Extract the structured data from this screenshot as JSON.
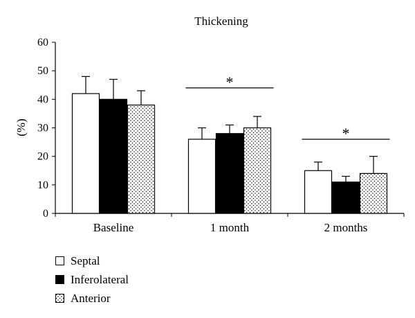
{
  "chart_data": {
    "type": "bar",
    "title": "Thickening",
    "ylabel": "(%)",
    "xlabel": "",
    "ylim": [
      0,
      60
    ],
    "yticks": [
      0,
      10,
      20,
      30,
      40,
      50,
      60
    ],
    "grid": false,
    "legend_position": "bottom-left",
    "categories": [
      "Baseline",
      "1 month",
      "2 months"
    ],
    "series": [
      {
        "name": "Septal",
        "values": [
          42,
          26,
          15
        ],
        "errors": [
          6,
          4,
          3
        ],
        "fill": "#ffffff",
        "pattern": "none"
      },
      {
        "name": "Inferolateral",
        "values": [
          40,
          28,
          11
        ],
        "errors": [
          7,
          3,
          2
        ],
        "fill": "#000000",
        "pattern": "none"
      },
      {
        "name": "Anterior",
        "values": [
          38,
          30,
          14
        ],
        "errors": [
          5,
          4,
          6
        ],
        "fill": "#ffffff",
        "pattern": "dots"
      }
    ],
    "annotations": [
      {
        "text": "*",
        "category": "1 month",
        "y": 44
      },
      {
        "text": "*",
        "category": "2 months",
        "y": 26
      }
    ]
  }
}
